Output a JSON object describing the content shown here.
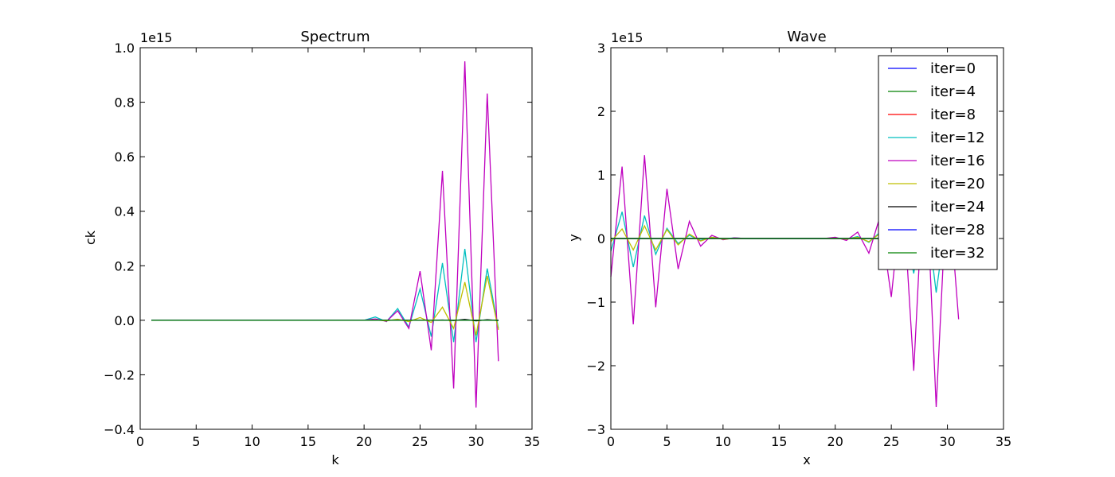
{
  "chart_data": [
    {
      "type": "line",
      "title": "Spectrum",
      "xlabel": "k",
      "ylabel": "ck",
      "xlim": [
        0,
        35
      ],
      "ylim": [
        -0.4,
        1.0
      ],
      "y_offset_text": "1e15",
      "x_ticks": [
        0,
        5,
        10,
        15,
        20,
        25,
        30,
        35
      ],
      "y_ticks": [
        -0.4,
        -0.2,
        0.0,
        0.2,
        0.4,
        0.6,
        0.8,
        1.0
      ],
      "x_tick_labels": [
        "0",
        "5",
        "10",
        "15",
        "20",
        "25",
        "30",
        "35"
      ],
      "y_tick_labels": [
        "−0.4",
        "−0.2",
        "0.0",
        "0.2",
        "0.4",
        "0.6",
        "0.8",
        "1.0"
      ],
      "grid": false,
      "legend": "none",
      "x": [
        1,
        2,
        3,
        4,
        5,
        6,
        7,
        8,
        9,
        10,
        11,
        12,
        13,
        14,
        15,
        16,
        17,
        18,
        19,
        20,
        21,
        22,
        23,
        24,
        25,
        26,
        27,
        28,
        29,
        30,
        31,
        32
      ],
      "series": [
        {
          "values": [
            0,
            0,
            0,
            0,
            0,
            0,
            0,
            0,
            0,
            0,
            0,
            0,
            0,
            0,
            0,
            0,
            0,
            0,
            0,
            0,
            0,
            0,
            0,
            0,
            0,
            0,
            0,
            0,
            0,
            0,
            0,
            0
          ]
        },
        {
          "values": [
            0,
            0,
            0,
            0,
            0,
            0,
            0,
            0,
            0,
            0,
            0,
            0,
            0,
            0,
            0,
            0,
            0,
            0,
            0,
            0,
            0,
            0,
            0,
            0,
            0,
            0,
            0,
            0,
            0,
            0,
            0,
            0
          ]
        },
        {
          "values": [
            0,
            0,
            0,
            0,
            0,
            0,
            0,
            0,
            0,
            0,
            0,
            0,
            0,
            0,
            0,
            0,
            0,
            0,
            0,
            0,
            0,
            0,
            0,
            0,
            0,
            0,
            0,
            0,
            0,
            0,
            0,
            0
          ]
        },
        {
          "values": [
            0,
            0,
            0,
            0,
            0,
            0,
            0,
            0,
            0,
            0,
            0,
            0,
            0,
            0,
            0,
            0,
            0,
            0,
            0,
            0,
            0.012,
            -0.005,
            0.043,
            -0.025,
            0.115,
            -0.06,
            0.21,
            -0.08,
            0.262,
            -0.08,
            0.19,
            -0.03
          ]
        },
        {
          "values": [
            0,
            0,
            0,
            0,
            0,
            0,
            0,
            0,
            0,
            0,
            0,
            0,
            0,
            0,
            0,
            0,
            0,
            0,
            0,
            0,
            0.005,
            -0.004,
            0.035,
            -0.03,
            0.18,
            -0.11,
            0.548,
            -0.25,
            0.95,
            -0.32,
            0.832,
            -0.15
          ]
        },
        {
          "values": [
            0,
            0,
            0,
            0,
            0,
            0,
            0,
            0,
            0,
            0,
            0,
            0,
            0,
            0,
            0,
            0,
            0,
            0,
            0,
            0,
            0.001,
            -0.002,
            0.004,
            -0.005,
            0.01,
            -0.008,
            0.048,
            -0.03,
            0.14,
            -0.055,
            0.163,
            -0.035
          ]
        },
        {
          "values": [
            0,
            0,
            0,
            0,
            0,
            0,
            0,
            0,
            0,
            0,
            0,
            0,
            0,
            0,
            0,
            0,
            0,
            0,
            0,
            0,
            0,
            0,
            0,
            0,
            0,
            0,
            0.001,
            -0.001,
            0.003,
            -0.002,
            0.002,
            -0.001
          ]
        },
        {
          "values": [
            0,
            0,
            0,
            0,
            0,
            0,
            0,
            0,
            0,
            0,
            0,
            0,
            0,
            0,
            0,
            0,
            0,
            0,
            0,
            0,
            0,
            0,
            0,
            0,
            0,
            0,
            0,
            0,
            0,
            0,
            0,
            0
          ]
        },
        {
          "values": [
            0,
            0,
            0,
            0,
            0,
            0,
            0,
            0,
            0,
            0,
            0,
            0,
            0,
            0,
            0,
            0,
            0,
            0,
            0,
            0,
            0,
            0,
            0,
            0,
            0,
            0,
            0,
            0,
            0,
            0,
            0,
            0
          ]
        }
      ]
    },
    {
      "type": "line",
      "title": "Wave",
      "xlabel": "x",
      "ylabel": "y",
      "xlim": [
        0,
        35
      ],
      "ylim": [
        -3,
        3
      ],
      "y_offset_text": "1e15",
      "x_ticks": [
        0,
        5,
        10,
        15,
        20,
        25,
        30,
        35
      ],
      "y_ticks": [
        -3,
        -2,
        -1,
        0,
        1,
        2,
        3
      ],
      "x_tick_labels": [
        "0",
        "5",
        "10",
        "15",
        "20",
        "25",
        "30",
        "35"
      ],
      "y_tick_labels": [
        "−3",
        "−2",
        "−1",
        "0",
        "1",
        "2",
        "3"
      ],
      "grid": false,
      "legend": "top-right",
      "x": [
        0,
        1,
        2,
        3,
        4,
        5,
        6,
        7,
        8,
        9,
        10,
        11,
        12,
        13,
        14,
        15,
        16,
        17,
        18,
        19,
        20,
        21,
        22,
        23,
        24,
        25,
        26,
        27,
        28,
        29,
        30,
        31
      ],
      "series": [
        {
          "name": "iter=0",
          "values": [
            0,
            0,
            0,
            0,
            0,
            0,
            0,
            0,
            0,
            0,
            0,
            0,
            0,
            0,
            0,
            0,
            0,
            0,
            0,
            0,
            0,
            0,
            0,
            0,
            0,
            0,
            0,
            0,
            0,
            0,
            0,
            0
          ]
        },
        {
          "name": "iter=4",
          "values": [
            0,
            0,
            0,
            0,
            0,
            0,
            0,
            0,
            0,
            0,
            0,
            0,
            0,
            0,
            0,
            0,
            0,
            0,
            0,
            0,
            0,
            0,
            0,
            0,
            0,
            0,
            0,
            0,
            0,
            0,
            0,
            0
          ]
        },
        {
          "name": "iter=8",
          "values": [
            0,
            0,
            0,
            0,
            0,
            0,
            0,
            0,
            0,
            0,
            0,
            0,
            0,
            0,
            0,
            0,
            0,
            0,
            0,
            0,
            0,
            0,
            0,
            0,
            0,
            0,
            0,
            0,
            0,
            0,
            0,
            0
          ]
        },
        {
          "name": "iter=12",
          "values": [
            -0.2,
            0.42,
            -0.45,
            0.36,
            -0.25,
            0.16,
            -0.08,
            0.05,
            -0.03,
            0.02,
            -0.01,
            0.01,
            0,
            0,
            0,
            0,
            0,
            0,
            0,
            0,
            0.01,
            -0.01,
            0.03,
            -0.06,
            0.1,
            -0.3,
            0.3,
            -0.55,
            0.6,
            -0.85,
            0.45,
            -0.35
          ]
        },
        {
          "name": "iter=16",
          "values": [
            -0.6,
            1.13,
            -1.35,
            1.31,
            -1.08,
            0.78,
            -0.48,
            0.27,
            -0.12,
            0.05,
            -0.02,
            0.01,
            0,
            0,
            0,
            0,
            0,
            0,
            0,
            0,
            0.02,
            -0.03,
            0.1,
            -0.23,
            0.35,
            -0.92,
            0.8,
            -2.08,
            1.4,
            -2.65,
            1.0,
            -1.27
          ]
        },
        {
          "name": "iter=20",
          "values": [
            -0.05,
            0.15,
            -0.18,
            0.2,
            -0.18,
            0.14,
            -0.1,
            0.07,
            -0.04,
            0.02,
            -0.01,
            0,
            0,
            0,
            0,
            0,
            0,
            0,
            0,
            0,
            0.005,
            -0.01,
            0.02,
            -0.05,
            0.08,
            -0.15,
            0.15,
            -0.2,
            0.2,
            -0.25,
            0.15,
            -0.1
          ]
        },
        {
          "name": "iter=24",
          "values": [
            0,
            0,
            0,
            0,
            0,
            0,
            0,
            0,
            0,
            0,
            0,
            0,
            0,
            0,
            0,
            0,
            0,
            0,
            0,
            0,
            0,
            0,
            0,
            0,
            0,
            0,
            0,
            0,
            0,
            0,
            0,
            0
          ]
        },
        {
          "name": "iter=28",
          "values": [
            0,
            0,
            0,
            0,
            0,
            0,
            0,
            0,
            0,
            0,
            0,
            0,
            0,
            0,
            0,
            0,
            0,
            0,
            0,
            0,
            0,
            0,
            0,
            0,
            0,
            0,
            0,
            0,
            0,
            0,
            0,
            0
          ]
        },
        {
          "name": "iter=32",
          "values": [
            0,
            0,
            0,
            0,
            0,
            0,
            0,
            0,
            0,
            0,
            0,
            0,
            0,
            0,
            0,
            0,
            0,
            0,
            0,
            0,
            0,
            0,
            0,
            0,
            0,
            0,
            0,
            0,
            0,
            0,
            0,
            0
          ]
        }
      ]
    }
  ],
  "series_colors": [
    "#0000ff",
    "#008000",
    "#ff0000",
    "#00bfbf",
    "#bf00bf",
    "#bfbf00",
    "#000000",
    "#0000ff",
    "#008000"
  ]
}
